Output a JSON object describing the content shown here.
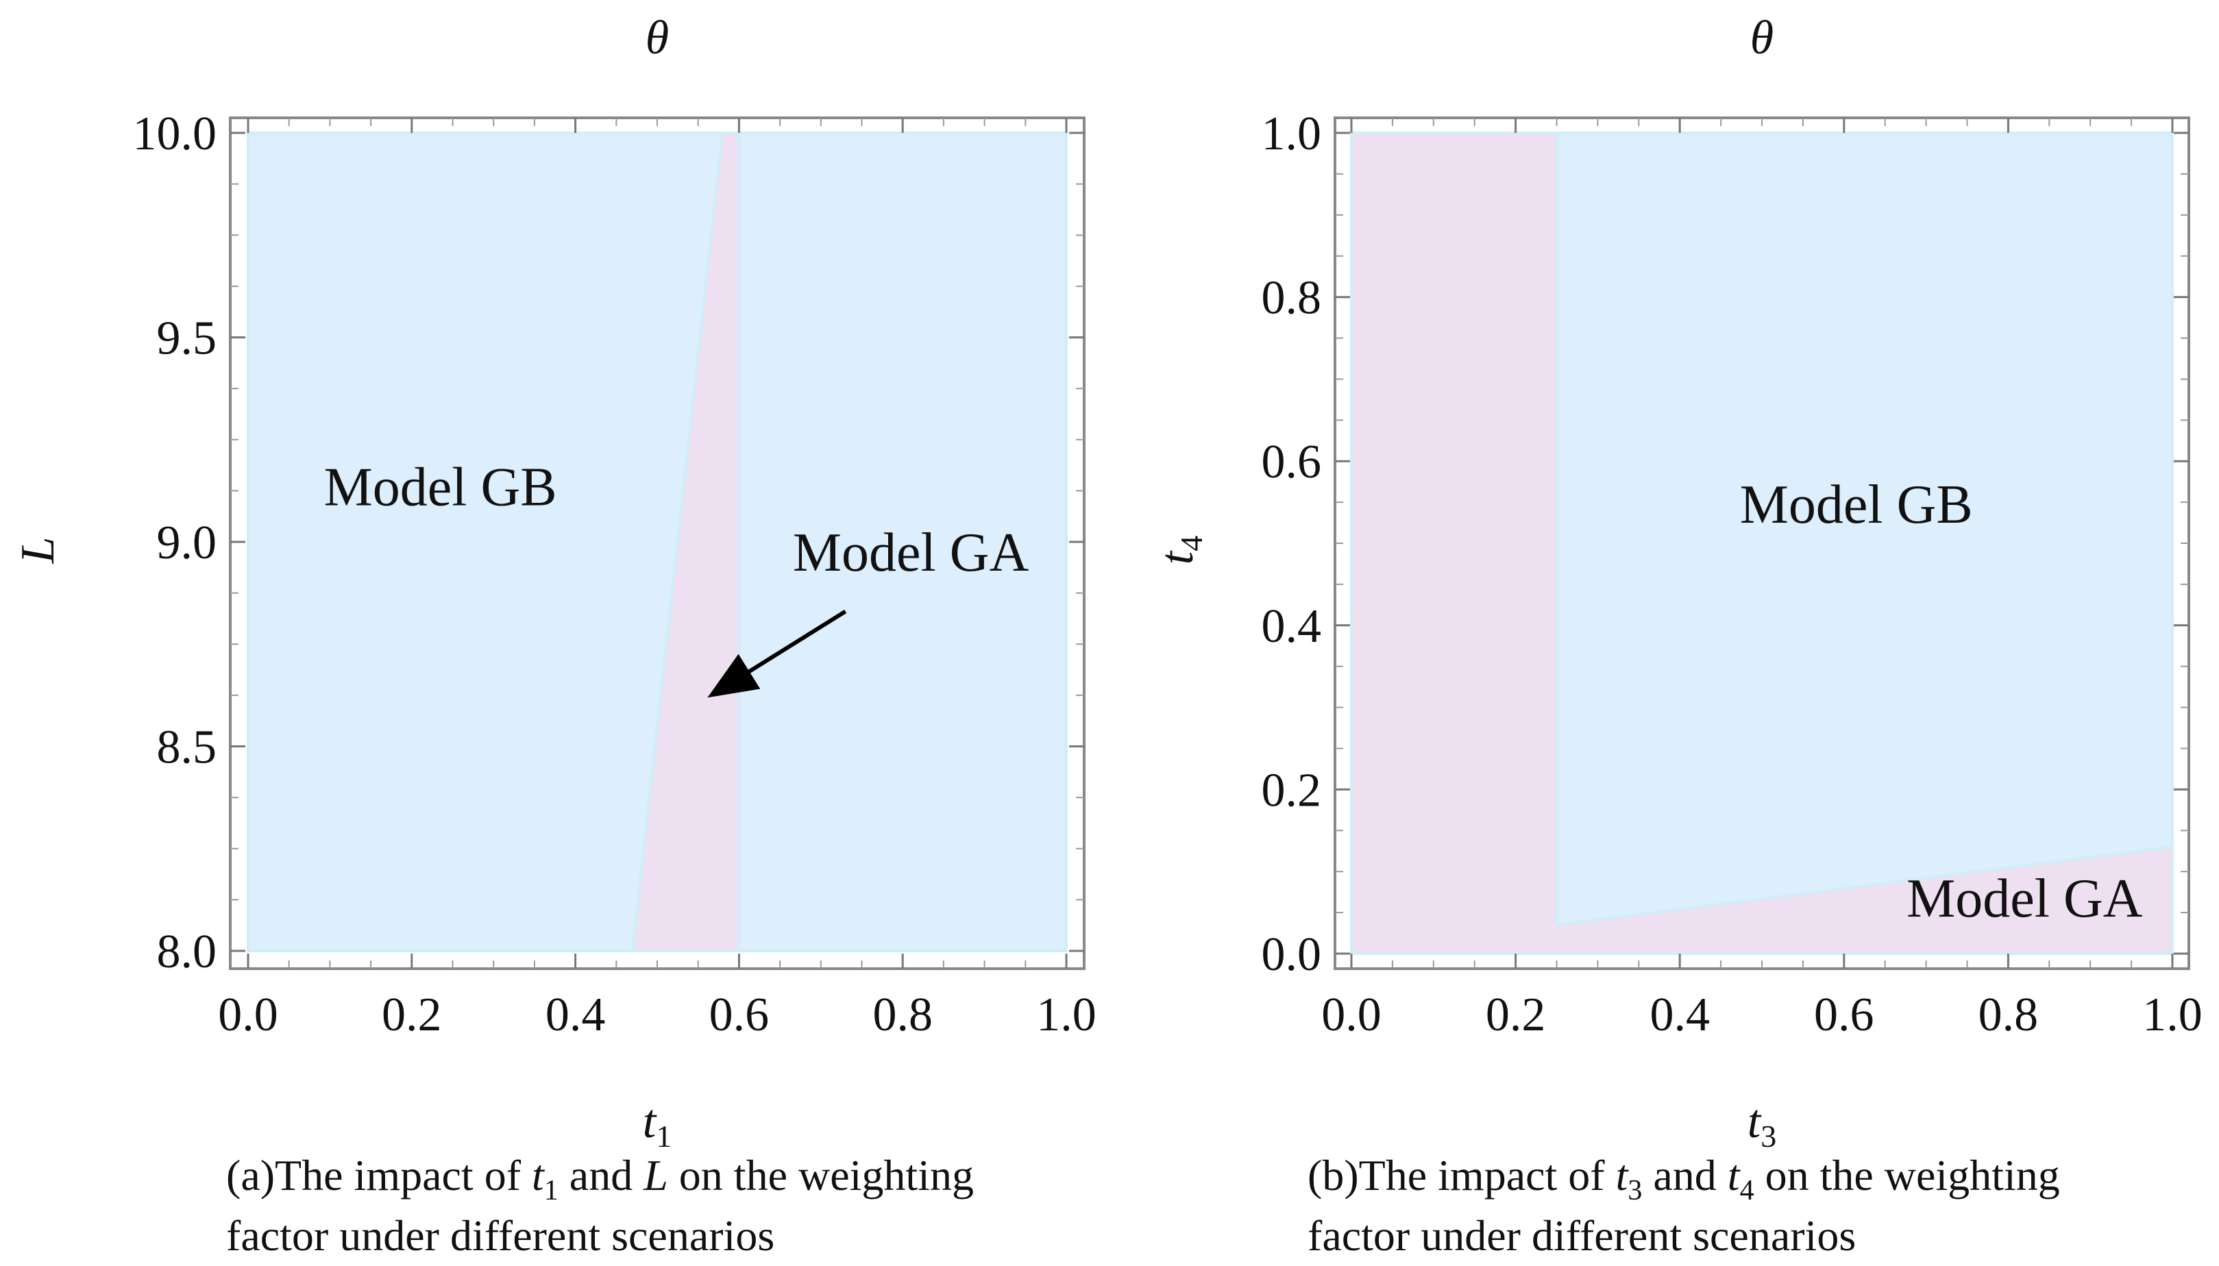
{
  "chart_data": [
    {
      "type": "region",
      "top_label": "θ",
      "xlabel": {
        "base": "t",
        "sub": "1"
      },
      "ylabel": "L",
      "xlim": [
        0,
        1.0
      ],
      "ylim": [
        8.0,
        10.0
      ],
      "xticks": [
        "0.0",
        "0.2",
        "0.4",
        "0.6",
        "0.8",
        "1.0"
      ],
      "yticks": [
        "8.0",
        "8.5",
        "9.0",
        "9.5",
        "10.0"
      ],
      "xtick_values": [
        0,
        0.2,
        0.4,
        0.6,
        0.8,
        1.0
      ],
      "ytick_values": [
        8.0,
        8.5,
        9.0,
        9.5,
        10.0
      ],
      "regions": [
        {
          "name": "Model GB",
          "color": "#ddeefc",
          "points": [
            [
              0,
              8.0
            ],
            [
              0.47,
              8.0
            ],
            [
              0.58,
              10.0
            ],
            [
              0,
              10.0
            ]
          ]
        },
        {
          "name": "Model GA",
          "color": "#eee0f0",
          "points": [
            [
              0.47,
              8.0
            ],
            [
              0.6,
              8.0
            ],
            [
              0.6,
              10.0
            ],
            [
              0.58,
              10.0
            ]
          ]
        },
        {
          "name": "Model GB",
          "color": "#ddeefc",
          "points": [
            [
              0.6,
              8.0
            ],
            [
              1.0,
              8.0
            ],
            [
              1.0,
              10.0
            ],
            [
              0.6,
              10.0
            ]
          ]
        }
      ],
      "annotations": [
        {
          "text": "Model GB",
          "x": 0.235,
          "y": 9.09
        },
        {
          "text": "Model GA",
          "x": 0.81,
          "y": 8.93,
          "arrow_from": [
            0.73,
            8.83
          ],
          "arrow_to": [
            0.57,
            8.63
          ]
        }
      ],
      "caption_lines": [
        {
          "prefix": "(a)The impact of ",
          "v1": "t",
          "s1": "1",
          "mid": " and ",
          "v2": "L",
          "s2": "",
          "suffix": " on the weighting"
        },
        {
          "text": "factor under different scenarios"
        }
      ]
    },
    {
      "type": "region",
      "top_label": "θ",
      "xlabel": {
        "base": "t",
        "sub": "3"
      },
      "ylabel": {
        "base": "t",
        "sub": "4"
      },
      "xlim": [
        0,
        1.0
      ],
      "ylim": [
        0,
        1.0
      ],
      "xticks": [
        "0.0",
        "0.2",
        "0.4",
        "0.6",
        "0.8",
        "1.0"
      ],
      "yticks": [
        "0.0",
        "0.2",
        "0.4",
        "0.6",
        "0.8",
        "1.0"
      ],
      "xtick_values": [
        0,
        0.2,
        0.4,
        0.6,
        0.8,
        1.0
      ],
      "ytick_values": [
        0,
        0.2,
        0.4,
        0.6,
        0.8,
        1.0
      ],
      "regions": [
        {
          "name": "Model GA",
          "color": "#eee0f0",
          "points": [
            [
              0,
              0
            ],
            [
              1.0,
              0
            ],
            [
              1.0,
              0.13
            ],
            [
              0.25,
              0.035
            ],
            [
              0.25,
              1.0
            ],
            [
              0,
              1.0
            ]
          ]
        },
        {
          "name": "Model GB",
          "color": "#ddeefc",
          "points": [
            [
              0.25,
              0.035
            ],
            [
              1.0,
              0.13
            ],
            [
              1.0,
              1.0
            ],
            [
              0.25,
              1.0
            ]
          ]
        }
      ],
      "annotations": [
        {
          "text": "Model GB",
          "x": 0.615,
          "y": 0.525
        },
        {
          "text": "Model GA",
          "x": 0.82,
          "y": 0.045
        }
      ],
      "caption_lines": [
        {
          "prefix": "(b)The impact of ",
          "v1": "t",
          "s1": "3",
          "mid": " and ",
          "v2": "t",
          "s2": "4",
          "suffix": " on the weighting"
        },
        {
          "text": "factor under different scenarios"
        }
      ]
    }
  ]
}
